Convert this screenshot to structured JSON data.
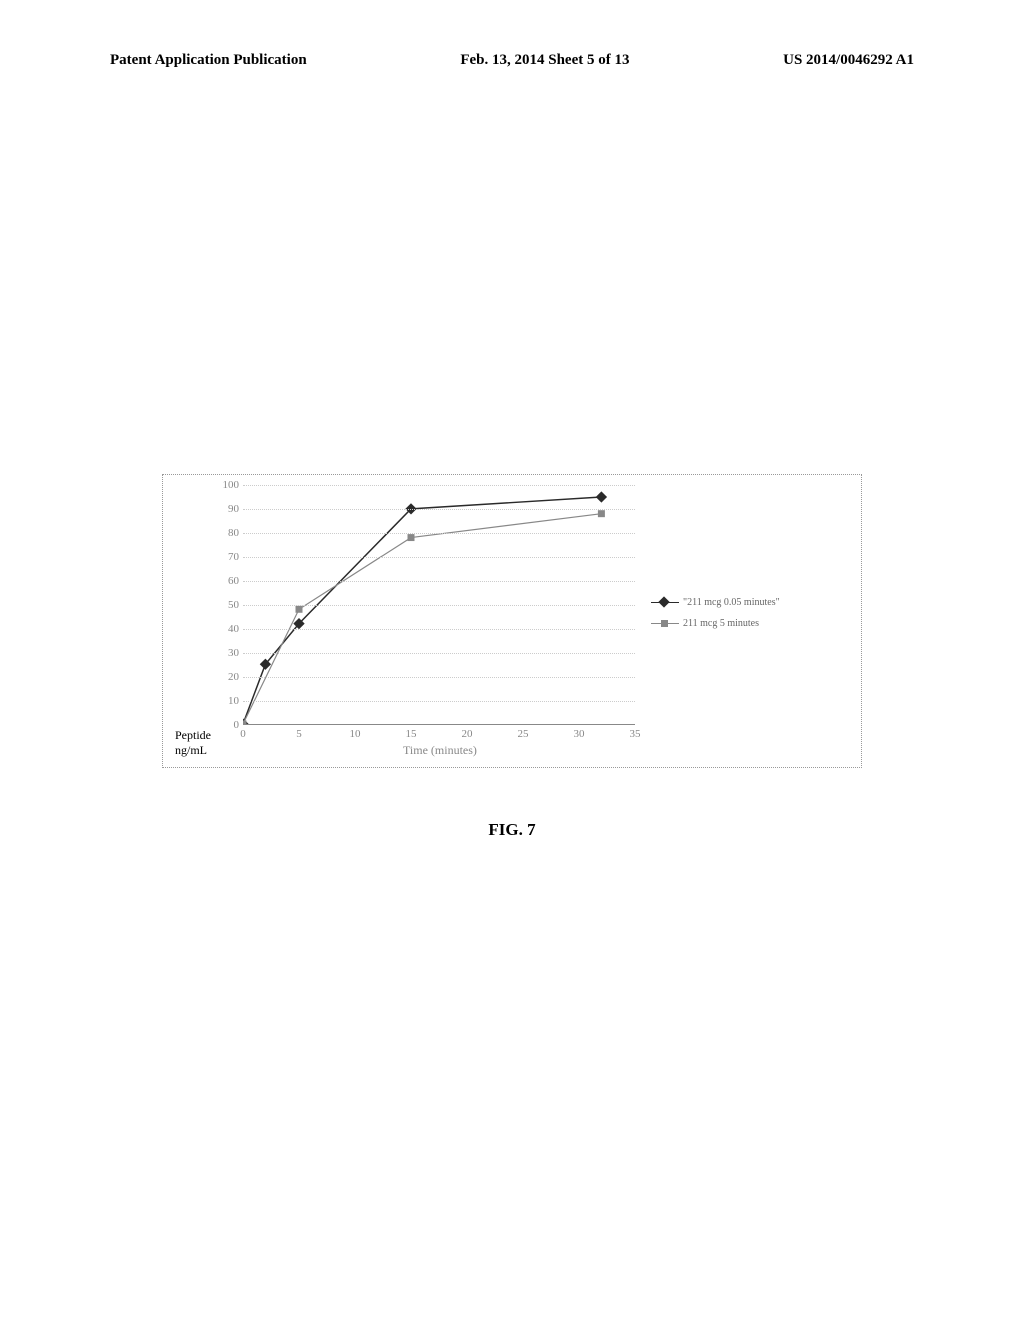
{
  "header": {
    "left": "Patent Application Publication",
    "center": "Feb. 13, 2014  Sheet 5 of 13",
    "right": "US 2014/0046292 A1"
  },
  "chart": {
    "type": "line",
    "x_label": "Time (minutes)",
    "y_label_line1": "Peptide",
    "y_label_line2": "ng/mL",
    "xlim": [
      0,
      35
    ],
    "ylim": [
      0,
      100
    ],
    "x_ticks": [
      0,
      5,
      10,
      15,
      20,
      25,
      30,
      35
    ],
    "y_ticks": [
      0,
      10,
      20,
      30,
      40,
      50,
      60,
      70,
      80,
      90,
      100
    ],
    "grid_color": "#cccccc",
    "axis_color": "#888888",
    "tick_fontsize": 11,
    "label_fontsize": 12,
    "series": [
      {
        "name": "\"211 mcg 0.05 minutes\"",
        "color": "#2a2a2a",
        "marker": "diamond",
        "marker_size": 8,
        "line_width": 1.5,
        "x": [
          0,
          2,
          5,
          15,
          32
        ],
        "y": [
          0,
          25,
          42,
          90,
          95
        ]
      },
      {
        "name": "211 mcg 5 minutes",
        "color": "#888888",
        "marker": "square",
        "marker_size": 7,
        "line_width": 1.2,
        "x": [
          0,
          5,
          15,
          32
        ],
        "y": [
          0,
          48,
          78,
          88
        ]
      }
    ]
  },
  "figure_caption": "FIG. 7"
}
